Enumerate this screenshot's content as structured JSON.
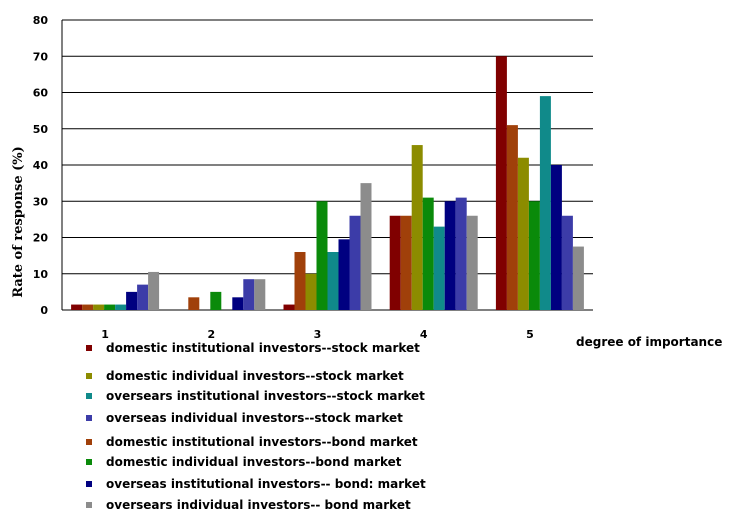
{
  "chart_data": {
    "type": "bar",
    "title": "",
    "xlabel": "degree of importance",
    "ylabel": "Rate of response (%)",
    "ylim": [
      0,
      80
    ],
    "yticks": [
      "0",
      "10",
      "20",
      "30",
      "40",
      "50",
      "60",
      "70",
      "80"
    ],
    "grid": true,
    "categories": [
      "1",
      "2",
      "3",
      "4",
      "5"
    ],
    "legend_position": "bottom",
    "series": [
      {
        "name": "domestic institutional investors--stock market",
        "color": "#800000",
        "values": [
          1.5,
          0,
          1.5,
          26,
          70
        ]
      },
      {
        "name": "domestic institutional investors--bond market",
        "color": "#A0400A",
        "values": [
          1.5,
          3.5,
          16,
          26,
          51
        ]
      },
      {
        "name": "domestic individual investors--stock market",
        "color": "#8C8C00",
        "values": [
          1.5,
          0,
          10,
          45.5,
          42
        ]
      },
      {
        "name": "domestic individual investors--bond market",
        "color": "#0A8A0A",
        "values": [
          1.5,
          5,
          30,
          31,
          30
        ]
      },
      {
        "name": "oversears institutional investors--stock market",
        "color": "#108A8A",
        "values": [
          1.5,
          0,
          16,
          23,
          59
        ]
      },
      {
        "name": "overseas institutional investors-- bond: market",
        "color": "#000080",
        "values": [
          5,
          3.5,
          19.5,
          30,
          40
        ]
      },
      {
        "name": "overseas individual investors--stock market",
        "color": "#3C3CA8",
        "values": [
          7,
          8.5,
          26,
          31,
          26
        ]
      },
      {
        "name": "oversears individual investors-- bond market",
        "color": "#8C8C8C",
        "values": [
          10.5,
          8.5,
          35,
          26,
          17.5
        ]
      }
    ],
    "legend_order": [
      0,
      2,
      4,
      6,
      1,
      3,
      5,
      7
    ]
  }
}
